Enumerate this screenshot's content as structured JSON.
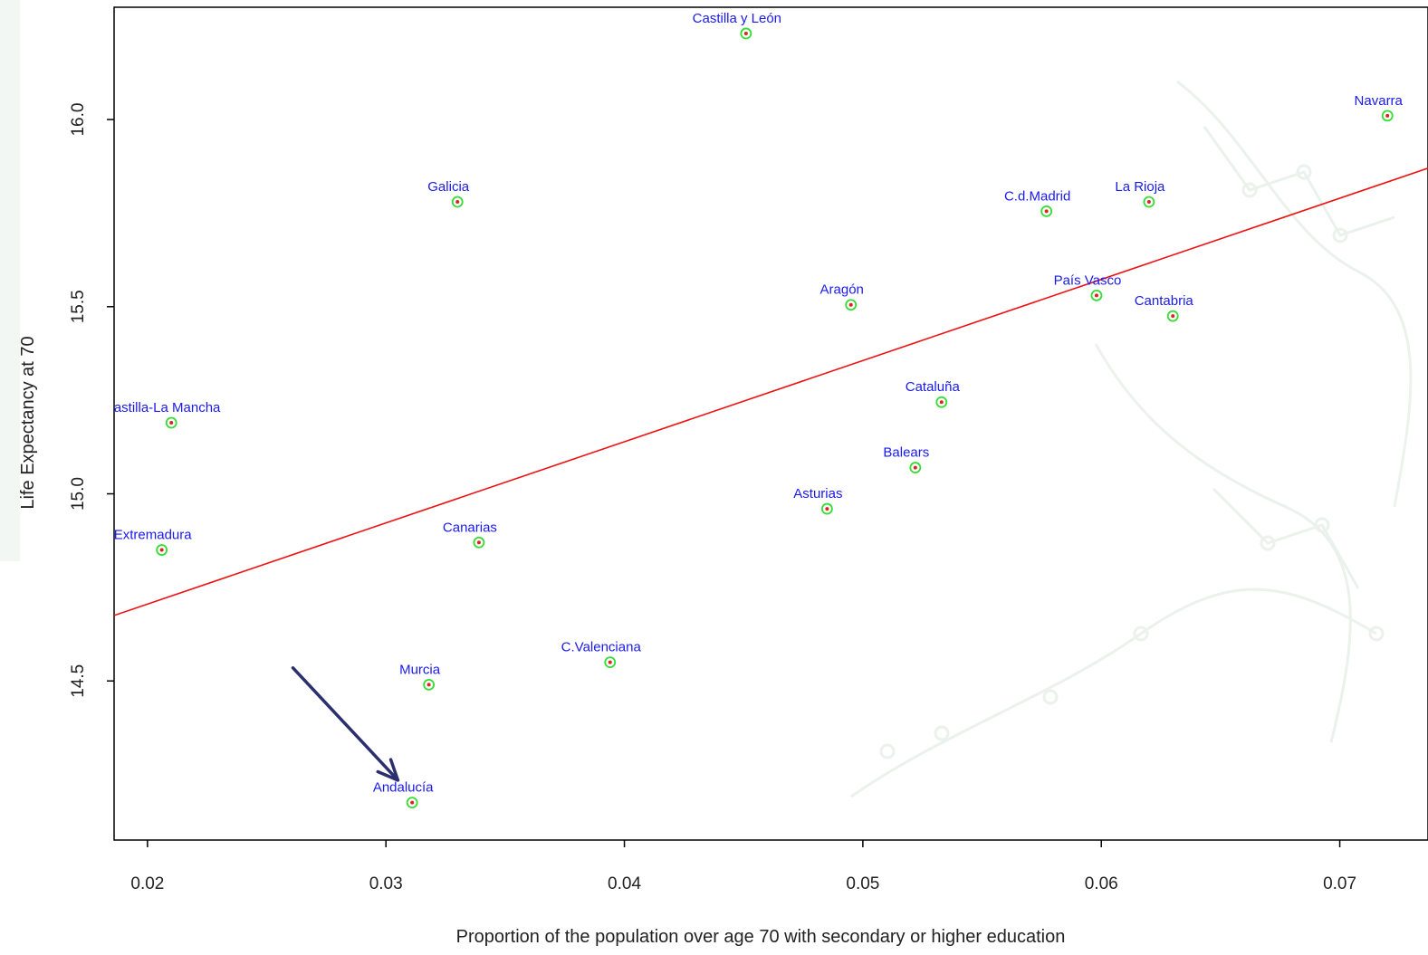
{
  "chart_data": {
    "type": "scatter",
    "xlabel": "Proportion of the population over age 70 with secondary or higher education",
    "ylabel": "Life Expectancy at 70",
    "xlim": [
      0.0186,
      0.0737
    ],
    "ylim": [
      14.075,
      16.3
    ],
    "x_ticks": [
      "0.02",
      "0.03",
      "0.04",
      "0.05",
      "0.06",
      "0.07"
    ],
    "y_ticks": [
      "14.5",
      "15.0",
      "15.5",
      "16.0"
    ],
    "grid": false,
    "points": [
      {
        "label": "Castilla y León",
        "x": 0.0451,
        "y": 16.23
      },
      {
        "label": "Navarra",
        "x": 0.072,
        "y": 16.01
      },
      {
        "label": "Galicia",
        "x": 0.033,
        "y": 15.78
      },
      {
        "label": "C.d.Madrid",
        "x": 0.0577,
        "y": 15.755
      },
      {
        "label": "La Rioja",
        "x": 0.062,
        "y": 15.78
      },
      {
        "label": "Aragón",
        "x": 0.0495,
        "y": 15.505
      },
      {
        "label": "País Vasco",
        "x": 0.0598,
        "y": 15.53
      },
      {
        "label": "Cantabria",
        "x": 0.063,
        "y": 15.475
      },
      {
        "label": "Castilla-La Mancha",
        "x": 0.021,
        "y": 15.19
      },
      {
        "label": "Cataluña",
        "x": 0.0533,
        "y": 15.245
      },
      {
        "label": "Balears",
        "x": 0.0522,
        "y": 15.07
      },
      {
        "label": "Asturias",
        "x": 0.0485,
        "y": 14.96
      },
      {
        "label": "Extremadura",
        "x": 0.0206,
        "y": 14.85
      },
      {
        "label": "Canarias",
        "x": 0.0339,
        "y": 14.87
      },
      {
        "label": "C.Valenciana",
        "x": 0.0394,
        "y": 14.55
      },
      {
        "label": "Murcia",
        "x": 0.0318,
        "y": 14.49
      },
      {
        "label": "Andalucía",
        "x": 0.0311,
        "y": 14.175
      }
    ],
    "regression_line": {
      "x0": 0.0186,
      "y0": 14.675,
      "x1": 0.0737,
      "y1": 15.87,
      "color": "#ee1111"
    },
    "annotation_arrow": {
      "from_x": 0.0261,
      "from_y": 14.535,
      "to_x": 0.0305,
      "to_y": 14.235,
      "color": "#2b2f6e"
    },
    "colors": {
      "point_ring": "#33dd33",
      "point_dot": "#dd2222",
      "label": "#1a1aee",
      "axis": "#000000"
    }
  }
}
